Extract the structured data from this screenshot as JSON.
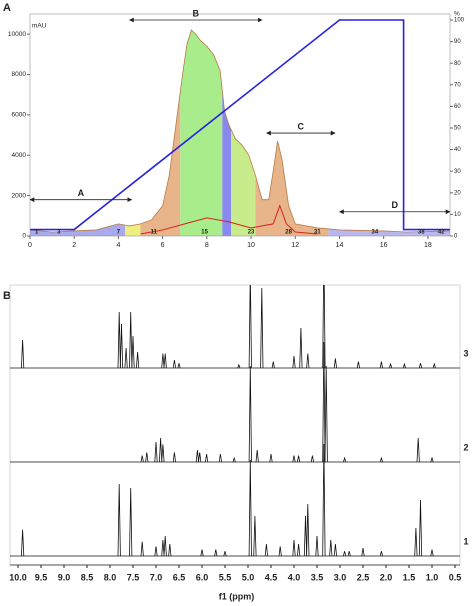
{
  "chart_data": [
    {
      "type": "chromatogram",
      "title": "A",
      "ylabel": "mAU",
      "y2label": "%",
      "xlim": [
        0,
        19
      ],
      "xticks": [
        0,
        2,
        4,
        6,
        8,
        10,
        12,
        14,
        16,
        18
      ],
      "ylim": [
        0,
        10700
      ],
      "yticks": [
        0,
        2000,
        4000,
        6000,
        8000,
        10000
      ],
      "y2lim": [
        0,
        100
      ],
      "y2ticks": [
        0,
        10,
        20,
        30,
        40,
        50,
        60,
        70,
        80,
        90,
        100
      ],
      "grid": false,
      "series": [
        {
          "color": "#b87a45",
          "fill": "#e8b48a",
          "x": [
            0,
            1,
            2,
            3,
            4,
            4.5,
            5,
            5.5,
            6,
            6.3,
            6.6,
            6.9,
            7.1,
            7.3,
            7.5,
            7.7,
            8,
            8.3,
            8.6,
            8.8,
            9,
            9.3,
            9.6,
            9.9,
            10.2,
            10.5,
            10.8,
            11,
            11.2,
            11.4,
            11.7,
            12,
            13,
            14,
            16,
            17,
            19
          ],
          "values": [
            300,
            200,
            250,
            300,
            600,
            500,
            600,
            800,
            1500,
            3000,
            5500,
            8000,
            9500,
            10200,
            10000,
            9700,
            9400,
            9000,
            8200,
            6200,
            5500,
            4800,
            4500,
            4000,
            3000,
            1800,
            1800,
            3200,
            4700,
            3800,
            1500,
            600,
            400,
            300,
            250,
            200,
            250
          ]
        },
        {
          "color": "#d62020",
          "x": [
            5,
            6,
            7,
            8,
            9,
            10,
            11,
            11.3,
            11.6,
            12,
            13
          ],
          "values": [
            100,
            300,
            600,
            900,
            700,
            400,
            600,
            1500,
            600,
            200,
            100
          ]
        },
        {
          "color": "#2323e0",
          "axis": "y2",
          "x": [
            0,
            2,
            14,
            16.9,
            16.9,
            19
          ],
          "values": [
            3,
            3,
            100,
            100,
            3,
            3
          ]
        }
      ],
      "regions": [
        {
          "start": 0,
          "end": 4.3,
          "color": "#a9a9ee"
        },
        {
          "start": 4.3,
          "end": 5,
          "color": "#eeee80"
        },
        {
          "start": 5,
          "end": 6.8,
          "color": "#e8b48a"
        },
        {
          "start": 6.8,
          "end": 8.7,
          "color": "#a8ec8c"
        },
        {
          "start": 8.7,
          "end": 9.1,
          "color": "#8888ee"
        },
        {
          "start": 9.1,
          "end": 10.2,
          "color": "#c8ec8c"
        },
        {
          "start": 10.2,
          "end": 13.5,
          "color": "#e8b48a"
        },
        {
          "start": 13.5,
          "end": 19,
          "color": "#b8b8ee"
        }
      ],
      "fraction_labels": [
        {
          "x": 0.3,
          "label": "1"
        },
        {
          "x": 1.3,
          "label": "3"
        },
        {
          "x": 4,
          "label": "7"
        },
        {
          "x": 5.6,
          "label": "11"
        },
        {
          "x": 7.9,
          "label": "15"
        },
        {
          "x": 10,
          "label": "23"
        },
        {
          "x": 11.7,
          "label": "28"
        },
        {
          "x": 13,
          "label": "31"
        },
        {
          "x": 15.6,
          "label": "34"
        },
        {
          "x": 17.7,
          "label": "38"
        },
        {
          "x": 18.6,
          "label": "42"
        }
      ],
      "annotations": [
        {
          "label": "A",
          "x": [
            0,
            4.6
          ],
          "y": 1800
        },
        {
          "label": "B",
          "x": [
            4.5,
            10.5
          ],
          "y": 10700
        },
        {
          "label": "C",
          "x": [
            10.7,
            13.8
          ],
          "y": 5100
        },
        {
          "label": "D",
          "x": [
            14,
            19
          ],
          "y": 1200
        }
      ]
    },
    {
      "type": "nmr",
      "title": "B",
      "xlabel": "f1 (ppm)",
      "xlim": [
        10,
        0.5
      ],
      "xticks": [
        {
          "value": 10,
          "label": "10.0"
        },
        9.5,
        {
          "value": 9,
          "label": "9.0"
        },
        8.5,
        {
          "value": 8,
          "label": "8.0"
        },
        7.5,
        {
          "value": 7,
          "label": "7.0"
        },
        6.5,
        {
          "value": 6,
          "label": "6.0"
        },
        5.5,
        {
          "value": 5,
          "label": "5.0"
        },
        4.5,
        {
          "value": 4,
          "label": "4.0"
        },
        3.5,
        {
          "value": 3,
          "label": "3.0"
        },
        2.5,
        {
          "value": 2,
          "label": "2.0"
        },
        1.5,
        {
          "value": 1,
          "label": "1.0"
        },
        0.5
      ],
      "series": [
        {
          "name": "3",
          "color": "#111111",
          "x": [
            9.9,
            7.8,
            7.75,
            7.65,
            7.55,
            7.5,
            7.4,
            6.85,
            6.8,
            6.6,
            6.5,
            5.2,
            4.95,
            4.7,
            4.45,
            4.0,
            3.85,
            3.7,
            3.35,
            3.1,
            2.6,
            2.1,
            1.9,
            1.6,
            1.25,
            0.95
          ],
          "values": [
            35,
            70,
            55,
            25,
            70,
            40,
            20,
            18,
            18,
            10,
            6,
            4,
            120,
            100,
            8,
            15,
            50,
            18,
            150,
            12,
            8,
            8,
            5,
            5,
            6,
            5
          ]
        },
        {
          "name": "2",
          "color": "#111111",
          "x": [
            7.3,
            7.2,
            7.0,
            6.9,
            6.85,
            6.6,
            6.1,
            6.05,
            5.9,
            5.6,
            5.3,
            4.95,
            4.8,
            4.5,
            4.0,
            3.9,
            3.6,
            3.35,
            3.3,
            2.9,
            2.1,
            1.3,
            1.0
          ],
          "values": [
            8,
            12,
            25,
            30,
            22,
            12,
            15,
            12,
            10,
            10,
            5,
            120,
            15,
            10,
            8,
            8,
            8,
            150,
            120,
            5,
            5,
            30,
            5
          ]
        },
        {
          "name": "1",
          "color": "#111111",
          "x": [
            9.9,
            7.8,
            7.55,
            7.3,
            7.0,
            6.85,
            6.8,
            6.7,
            6.0,
            5.7,
            5.5,
            4.95,
            4.85,
            4.6,
            4.3,
            4.0,
            3.9,
            3.75,
            3.7,
            3.5,
            3.35,
            3.2,
            3.1,
            2.9,
            2.8,
            2.5,
            2.1,
            1.35,
            1.25,
            1.0
          ],
          "values": [
            33,
            90,
            85,
            18,
            12,
            20,
            25,
            15,
            8,
            8,
            6,
            120,
            50,
            15,
            12,
            20,
            15,
            50,
            65,
            25,
            140,
            20,
            15,
            6,
            6,
            10,
            6,
            35,
            70,
            8
          ]
        }
      ]
    }
  ]
}
